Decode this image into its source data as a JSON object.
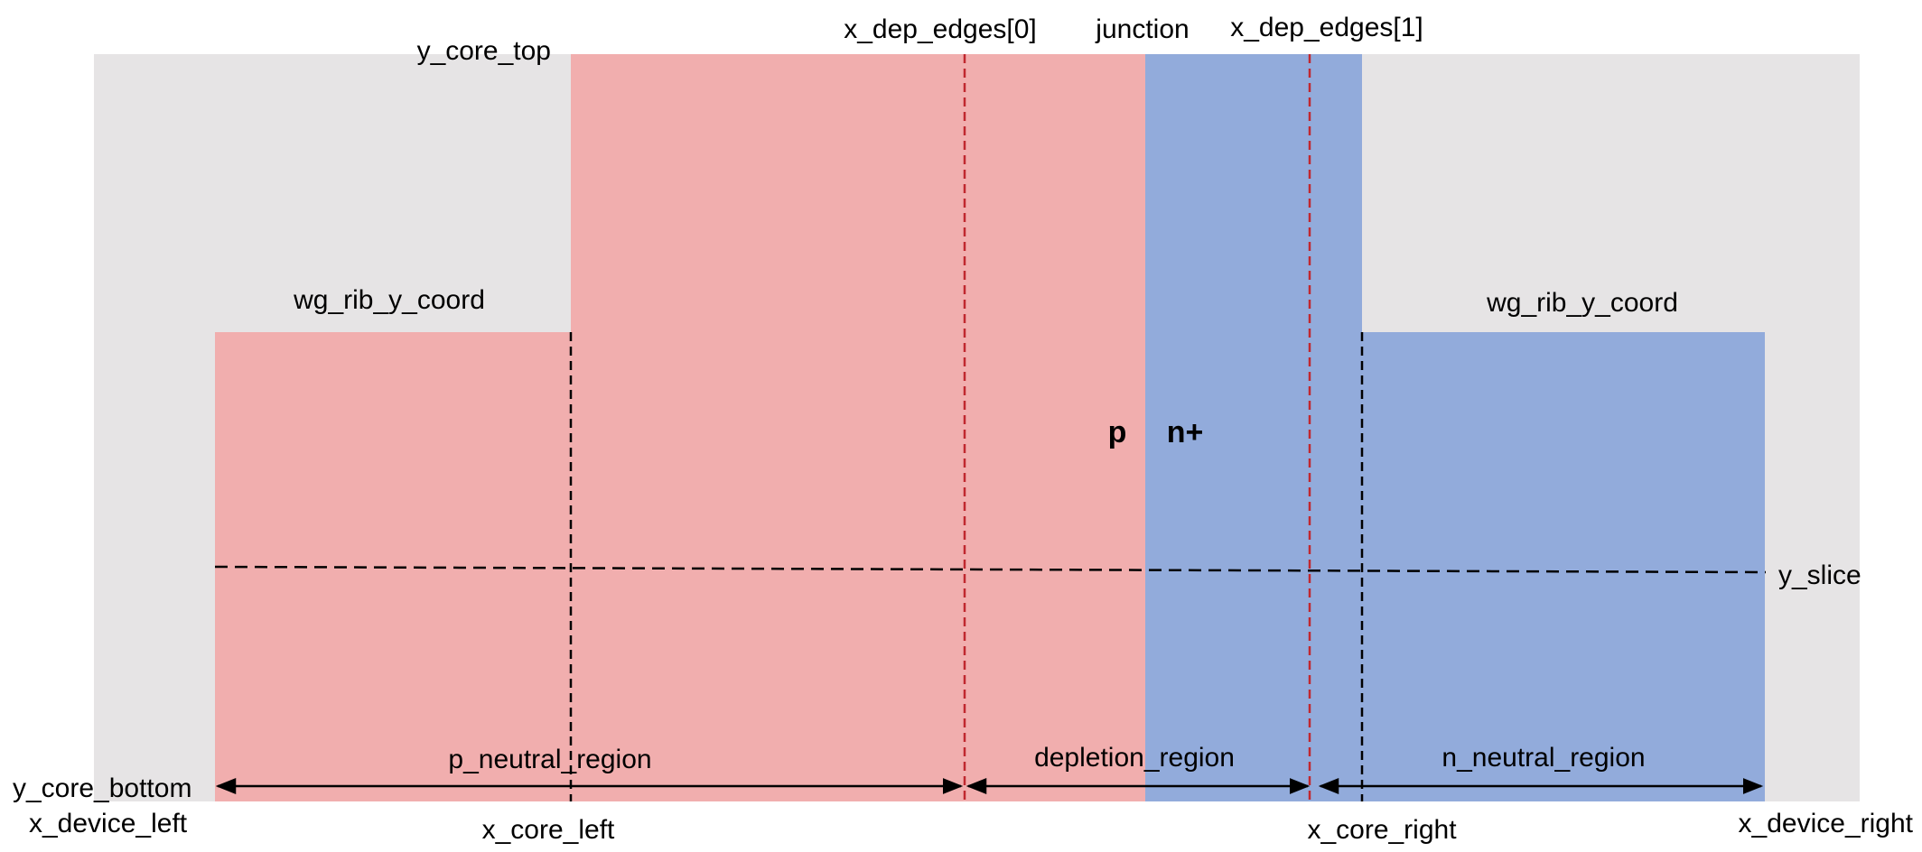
{
  "colors": {
    "background": "#e6e4e5",
    "p_region": "#f1aeae",
    "n_region": "#92abdb",
    "dashed_black": "#000000",
    "dashed_red": "#c0282f",
    "arrow": "#000000"
  },
  "labels": {
    "y_core_top": "y_core_top",
    "x_dep_edges_0": "x_dep_edges[0]",
    "junction": "junction",
    "x_dep_edges_1": "x_dep_edges[1]",
    "wg_rib_y_coord_left": "wg_rib_y_coord",
    "wg_rib_y_coord_right": "wg_rib_y_coord",
    "p": "p",
    "n_plus": "n+",
    "y_slice": "y_slice",
    "p_neutral_region": "p_neutral_region",
    "depletion_region": "depletion_region",
    "n_neutral_region": "n_neutral_region",
    "y_core_bottom": "y_core_bottom",
    "x_device_left": "x_device_left",
    "x_core_left": "x_core_left",
    "x_core_right": "x_core_right",
    "x_device_right": "x_device_right"
  }
}
